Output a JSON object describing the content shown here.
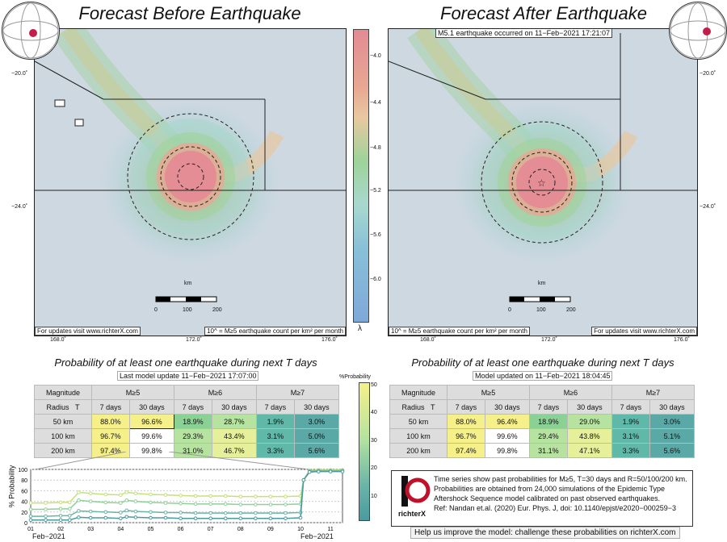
{
  "left_panel": {
    "title": "Forecast Before Earthquake",
    "footer_left": "For updates visit www.richterX.com",
    "footer_right": "10^ = M≥5 earthquake count per km² per month",
    "km_label": "km",
    "scale_ticks": [
      "0",
      "100",
      "200"
    ],
    "lon_ticks": [
      "168.0˚",
      "172.0˚",
      "176.0˚"
    ],
    "lat_ticks": [
      "−20.0˚",
      "−24.0˚"
    ]
  },
  "right_panel": {
    "title": "Forecast After Earthquake",
    "event_banner": "M5.1 earthquake occurred on 11−Feb−2021 17:21:07",
    "footer_left": "10^ = M≥5 earthquake count per km² per month",
    "footer_right": "For updates visit www.richterX.com",
    "km_label": "km",
    "scale_ticks": [
      "0",
      "100",
      "200"
    ],
    "lon_ticks": [
      "168.0˚",
      "172.0˚",
      "176.0˚"
    ],
    "lat_ticks": [
      "−20.0˚",
      "−24.0˚"
    ]
  },
  "colorbar": {
    "ticks": [
      "−4.0",
      "−4.4",
      "−4.8",
      "−5.2",
      "−5.6",
      "−6.0"
    ],
    "label": "λ"
  },
  "prob_colorbar": {
    "title": "%Probability",
    "ticks": [
      "50",
      "40",
      "30",
      "20",
      "10"
    ]
  },
  "left_table": {
    "heading": "Probability of at least one earthquake during next T days",
    "update": "Last model update 11−Feb−2021 17:07:00",
    "mag_header": "Magnitude",
    "radius_header": "Radius",
    "t_header": "T",
    "mags": [
      "M≥5",
      "M≥6",
      "M≥7"
    ],
    "periods": [
      "7 days",
      "30 days"
    ],
    "rows": [
      {
        "radius": "50 km",
        "values": [
          "88.0%",
          "96.6%",
          "18.9%",
          "28.7%",
          "1.9%",
          "3.0%"
        ]
      },
      {
        "radius": "100 km",
        "values": [
          "96.7%",
          "99.6%",
          "29.3%",
          "43.4%",
          "3.1%",
          "5.0%"
        ]
      },
      {
        "radius": "200 km",
        "values": [
          "97.4%",
          "99.8%",
          "31.0%",
          "46.7%",
          "3.3%",
          "5.6%"
        ]
      }
    ]
  },
  "right_table": {
    "heading": "Probability of at least one earthquake during next T days",
    "update": "Model updated on 11−Feb−2021 18:04:45",
    "mag_header": "Magnitude",
    "radius_header": "Radius",
    "t_header": "T",
    "mags": [
      "M≥5",
      "M≥6",
      "M≥7"
    ],
    "periods": [
      "7 days",
      "30 days"
    ],
    "rows": [
      {
        "radius": "50 km",
        "values": [
          "88.0%",
          "96.4%",
          "18.9%",
          "29.0%",
          "1.9%",
          "3.0%"
        ]
      },
      {
        "radius": "100 km",
        "values": [
          "96.7%",
          "99.6%",
          "29.4%",
          "43.8%",
          "3.1%",
          "5.1%"
        ]
      },
      {
        "radius": "200 km",
        "values": [
          "97.4%",
          "99.8%",
          "31.1%",
          "47.1%",
          "3.3%",
          "5.6%"
        ]
      }
    ]
  },
  "cell_colors": {
    "yellow": "#f6f08a",
    "green_light": "#b6e3a0",
    "green": "#89d294",
    "teal": "#5fb8a8",
    "teal_dark": "#5aa9a6",
    "white": "#ffffff"
  },
  "info": {
    "logo": "richterX",
    "lines": [
      "Time series show past probabilities for M≥5, T=30 days and R=50/100/200 km.",
      "Probabilities are obtained from 24,000 simulations of the Epidemic Type",
      "Aftershock Sequence model calibrated on past observed earthquakes.",
      "Ref: Nandan et.al. (2020) Eur. Phys. J, doi: 10.1140/epjst/e2020−000259−3"
    ],
    "help": "Help us improve the model: challenge these probabilities on richterX.com"
  },
  "chart_data": {
    "type": "line",
    "ylabel": "% Probability",
    "ylim": [
      0,
      100
    ],
    "yticks": [
      0,
      20,
      40,
      60,
      80,
      100
    ],
    "xticks": [
      "01",
      "02",
      "03",
      "04",
      "05",
      "06",
      "07",
      "08",
      "09",
      "10",
      "11"
    ],
    "xstart_label": "Feb−2021",
    "xend_label": "Feb−2021",
    "x": [
      1,
      1.5,
      2,
      2.3,
      2.6,
      3,
      3.5,
      4,
      4.2,
      4.5,
      5,
      5.5,
      6,
      6.5,
      7,
      7.5,
      8,
      8.5,
      9,
      9.5,
      10,
      10.1,
      10.3,
      10.6,
      11,
      11.4
    ],
    "series": [
      {
        "color": "#c7e07a",
        "values": [
          37,
          37,
          38,
          38,
          57,
          55,
          53,
          52,
          57,
          55,
          53,
          52,
          51,
          50,
          50,
          50,
          49,
          49,
          49,
          49,
          50,
          80,
          98,
          99,
          99,
          99
        ]
      },
      {
        "color": "#8fd09a",
        "values": [
          25,
          25,
          26,
          26,
          42,
          40,
          38,
          37,
          42,
          40,
          38,
          37,
          36,
          35,
          35,
          35,
          34,
          34,
          34,
          34,
          35,
          80,
          97,
          98,
          98,
          98
        ]
      },
      {
        "color": "#6ab4a8",
        "values": [
          12,
          12,
          13,
          13,
          22,
          21,
          20,
          19,
          23,
          21,
          20,
          19,
          19,
          18,
          18,
          18,
          18,
          18,
          18,
          18,
          19,
          80,
          96,
          97,
          97,
          97
        ]
      },
      {
        "color": "#4a9aa0",
        "values": [
          5,
          5,
          5,
          5,
          10,
          9,
          9,
          8,
          11,
          10,
          9,
          9,
          8,
          8,
          8,
          8,
          8,
          8,
          8,
          8,
          9,
          80,
          95,
          96,
          96,
          96
        ]
      }
    ]
  }
}
